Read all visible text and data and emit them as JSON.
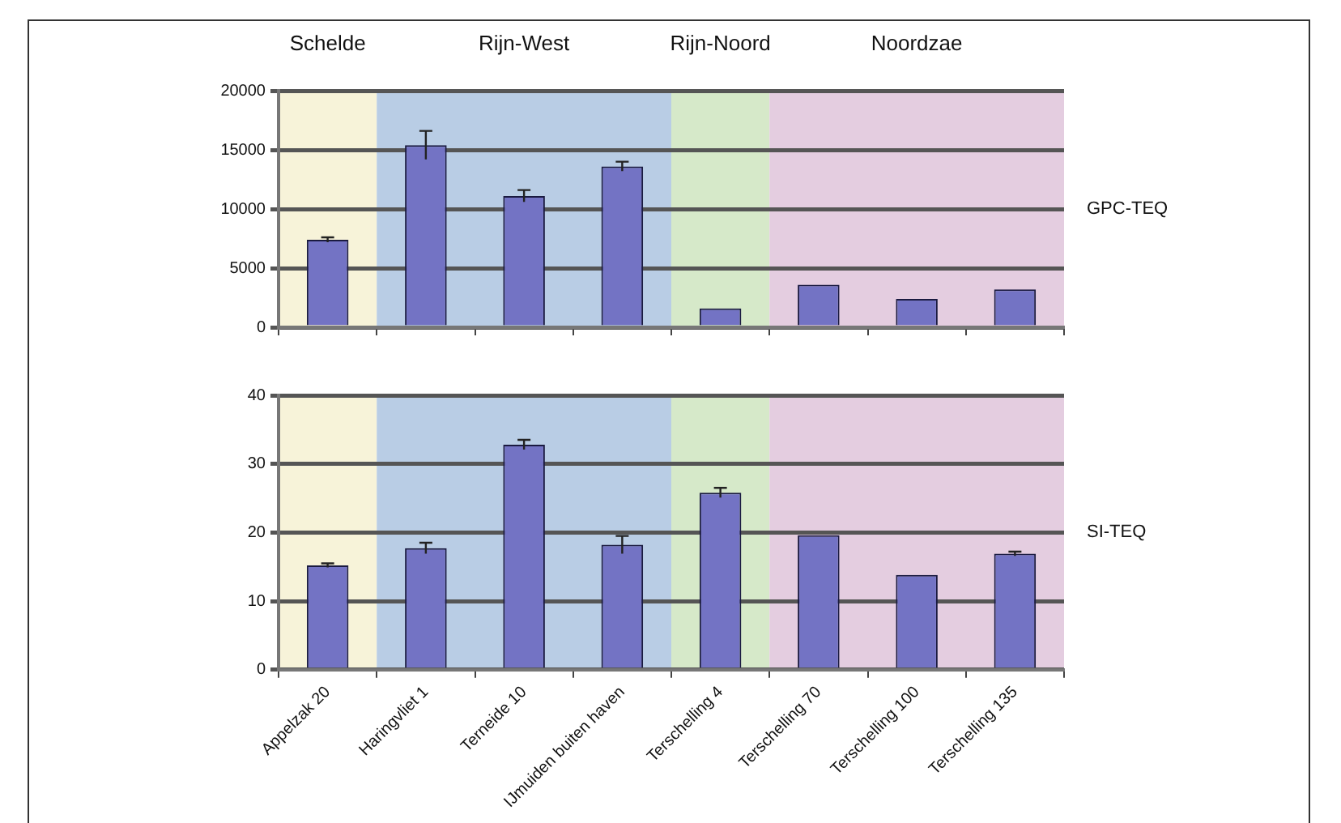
{
  "chart_data": [
    {
      "type": "bar",
      "ylabel": "GPC-TEQ",
      "categories": [
        "Appelzak 20",
        "Haringvliet 1",
        "Terneide 10",
        "IJmuiden buiten haven",
        "Terschelling 4",
        "Terschelling 70",
        "Terschelling 100",
        "Terschelling 135"
      ],
      "series": [
        {
          "color": "#7373c4",
          "values": [
            7400,
            15400,
            11100,
            13600,
            1600,
            3600,
            2400,
            3200
          ],
          "errors": [
            200,
            1200,
            500,
            400,
            null,
            null,
            null,
            null
          ]
        }
      ],
      "ylim": [
        0,
        20000
      ],
      "yticks": [
        0,
        5000,
        10000,
        15000,
        20000
      ],
      "grid": "y",
      "legend": false,
      "tick_labels": "y",
      "bands": [
        {
          "axis": "x",
          "from": "Appelzak 20",
          "to": "Appelzak 20",
          "label": "Schelde",
          "color": "#f7f3d9"
        },
        {
          "axis": "x",
          "from": "Haringvliet 1",
          "to": "IJmuiden buiten haven",
          "label": "Rijn-West",
          "color": "#b9cde5"
        },
        {
          "axis": "x",
          "from": "Terschelling 4",
          "to": "Terschelling 4",
          "label": "Rijn-Noord",
          "color": "#d6e9c9"
        },
        {
          "axis": "x",
          "from": "Terschelling 70",
          "to": "Terschelling 135",
          "label": "Noordzae",
          "color": "#e4cde0"
        }
      ]
    },
    {
      "type": "bar",
      "ylabel": "SI-TEQ",
      "categories": [
        "Appelzak 20",
        "Haringvliet 1",
        "Terneide 10",
        "IJmuiden buiten haven",
        "Terschelling 4",
        "Terschelling 70",
        "Terschelling 100",
        "Terschelling 135"
      ],
      "series": [
        {
          "color": "#7373c4",
          "values": [
            15.2,
            17.7,
            32.8,
            18.2,
            25.8,
            19.6,
            13.8,
            16.9
          ],
          "errors": [
            0.3,
            0.8,
            0.7,
            1.3,
            0.7,
            null,
            null,
            0.3
          ]
        }
      ],
      "ylim": [
        0,
        40
      ],
      "yticks": [
        0,
        10,
        20,
        30,
        40
      ],
      "grid": "y",
      "legend": false,
      "bands": [
        {
          "axis": "x",
          "from": "Appelzak 20",
          "to": "Appelzak 20",
          "color": "#f7f3d9"
        },
        {
          "axis": "x",
          "from": "Haringvliet 1",
          "to": "IJmuiden buiten haven",
          "color": "#b9cde5"
        },
        {
          "axis": "x",
          "from": "Terschelling 4",
          "to": "Terschelling 4",
          "color": "#d6e9c9"
        },
        {
          "axis": "x",
          "from": "Terschelling 70",
          "to": "Terschelling 135",
          "color": "#e4cde0"
        }
      ]
    }
  ]
}
